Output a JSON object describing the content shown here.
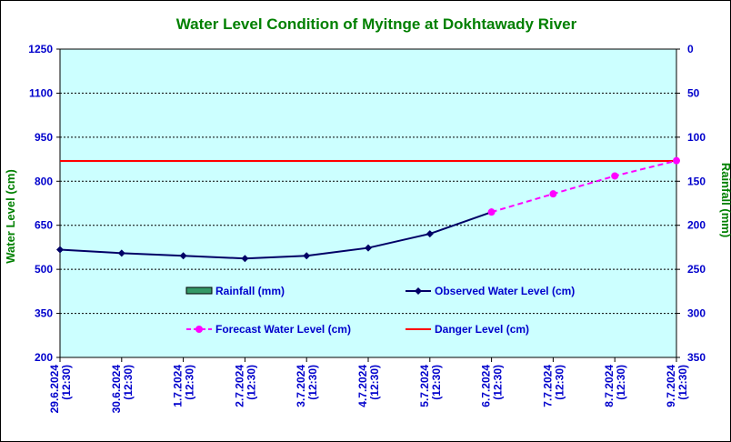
{
  "chart_data": {
    "type": "line",
    "title": "Water Level Condition of Myitnge at Dokhtawady River",
    "ylabel": "Water Level (cm)",
    "y2label": "Rainfall (mm)",
    "ylim": [
      200,
      1250
    ],
    "yticks": [
      200,
      350,
      500,
      650,
      800,
      950,
      1100,
      1250
    ],
    "y2lim": [
      0,
      350
    ],
    "y2ticks": [
      0,
      50,
      100,
      150,
      200,
      250,
      300,
      350
    ],
    "y2_inverted": true,
    "grid": true,
    "x": [
      [
        "29.6.2024",
        "(12:30)"
      ],
      [
        "30.6.2024",
        "(12:30)"
      ],
      [
        "1.7.2024",
        "(12:30)"
      ],
      [
        "2.7.2024",
        "(12:30)"
      ],
      [
        "3.7.2024",
        "(12:30)"
      ],
      [
        "4.7.2024",
        "(12:30)"
      ],
      [
        "5.7.2024",
        "(12:30)"
      ],
      [
        "6.7.2024",
        "(12:30)"
      ],
      [
        "7.7.2024",
        "(12:30)"
      ],
      [
        "8.7.2024",
        "(12:30)"
      ],
      [
        "9.7.2024",
        "(12:30)"
      ]
    ],
    "series": [
      {
        "name": "Observed Water Level (cm)",
        "color": "#000066",
        "marker": "diamond",
        "values": [
          567,
          555,
          546,
          537,
          546,
          573,
          621,
          695,
          null,
          null,
          null
        ]
      },
      {
        "name": "Forecast Water Level (cm)",
        "color": "#ff00ff",
        "marker": "circle",
        "dashed": true,
        "values": [
          null,
          null,
          null,
          null,
          null,
          null,
          null,
          695,
          757,
          818,
          870
        ]
      },
      {
        "name": "Danger Level (cm)",
        "color": "#ff0000",
        "constant": 869
      }
    ],
    "legend": {
      "placement": "inside-bottom",
      "items": [
        "Rainfall (mm)",
        "Observed Water Level (cm)",
        "Forecast Water Level (cm)",
        "Danger Level (cm)"
      ],
      "rainfall_color": "#339966"
    },
    "colors": {
      "plot_background": "#ccffff",
      "title": "#008000",
      "axis_label": "#008000",
      "tick_label": "#0000cc"
    }
  }
}
